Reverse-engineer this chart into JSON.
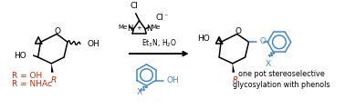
{
  "bg_color": "#ffffff",
  "black": "#000000",
  "red": "#dd2200",
  "blue": "#4488cc",
  "title_text": "one pot stereoselective\nglycosylation with phenols",
  "r_eq1": "R = OH",
  "r_eq2": "R = NHAc"
}
